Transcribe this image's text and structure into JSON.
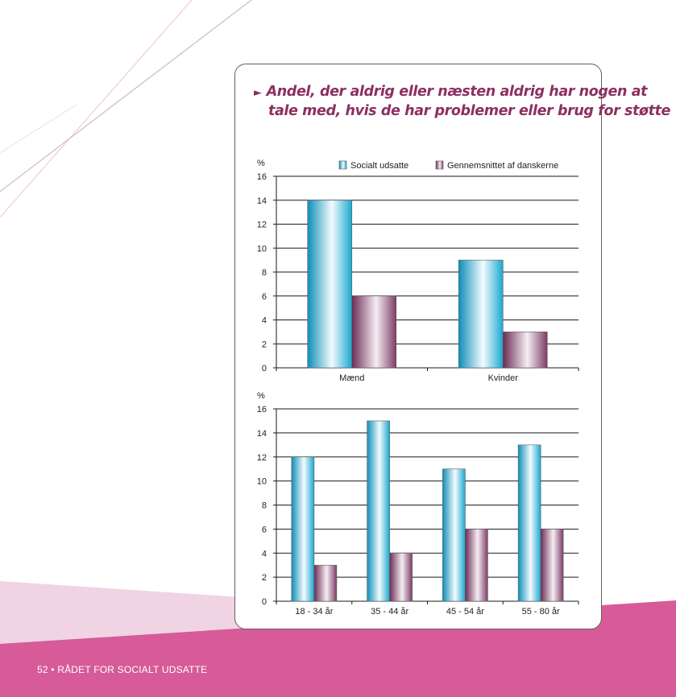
{
  "footer": {
    "text": "52 • RÅDET FOR SOCIALT UDSATTE"
  },
  "title": {
    "arrow": "►",
    "line1": "Andel, der aldrig eller næsten aldrig har nogen at",
    "line2": "tale med, hvis de har problemer eller brug for støtte"
  },
  "colors": {
    "series1": "#19a9d2",
    "series2": "#7a3a63",
    "accent": "#d65b98",
    "title": "#8c2f63"
  },
  "chart_data": [
    {
      "type": "bar",
      "ylabel": "%",
      "ylim": [
        0,
        16
      ],
      "yticks": [
        "0",
        "2",
        "4",
        "6",
        "8",
        "10",
        "12",
        "14",
        "16"
      ],
      "grid": true,
      "legend": "top-right",
      "categories": [
        "Mænd",
        "Kvinder"
      ],
      "series": [
        {
          "name": "Socialt udsatte",
          "values": [
            14,
            9
          ]
        },
        {
          "name": "Gennemsnittet af danskerne",
          "values": [
            6,
            3
          ]
        }
      ]
    },
    {
      "type": "bar",
      "ylabel": "%",
      "ylim": [
        0,
        16
      ],
      "yticks": [
        "0",
        "2",
        "4",
        "6",
        "8",
        "10",
        "12",
        "14",
        "16"
      ],
      "grid": true,
      "categories": [
        "18 - 34 år",
        "35 - 44 år",
        "45 - 54 år",
        "55 - 80 år"
      ],
      "series": [
        {
          "values": [
            12,
            15,
            11,
            13
          ]
        },
        {
          "values": [
            3,
            4,
            6,
            6
          ]
        }
      ]
    }
  ]
}
